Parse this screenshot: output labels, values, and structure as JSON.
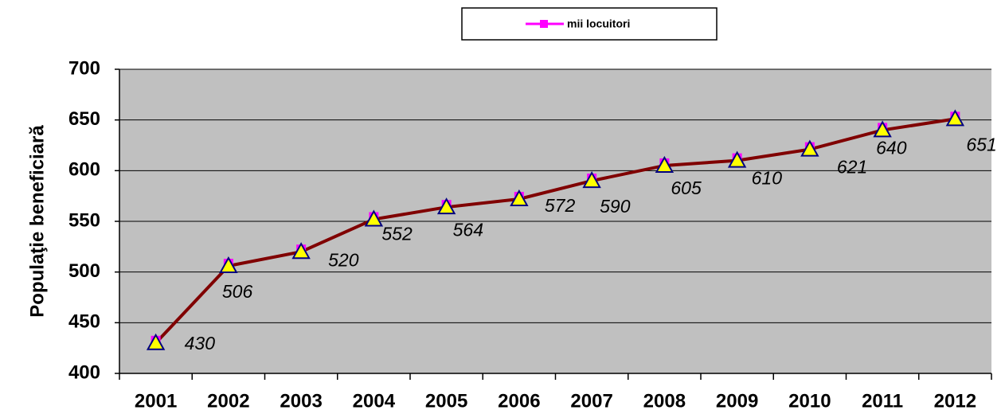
{
  "chart_data": {
    "type": "line",
    "y_label": "Populaţie beneficiară",
    "categories": [
      "2001",
      "2002",
      "2003",
      "2004",
      "2005",
      "2006",
      "2007",
      "2008",
      "2009",
      "2010",
      "2011",
      "2012"
    ],
    "series": [
      {
        "name": "mii locuitori",
        "color": "#800000",
        "marker_color": "#ff00ff",
        "values": [
          430,
          506,
          520,
          552,
          564,
          572,
          590,
          605,
          610,
          621,
          640,
          651
        ]
      }
    ],
    "ylim": [
      400,
      700
    ],
    "yticks": [
      400,
      450,
      500,
      550,
      600,
      650,
      700
    ],
    "grid": true,
    "legend": "top"
  }
}
